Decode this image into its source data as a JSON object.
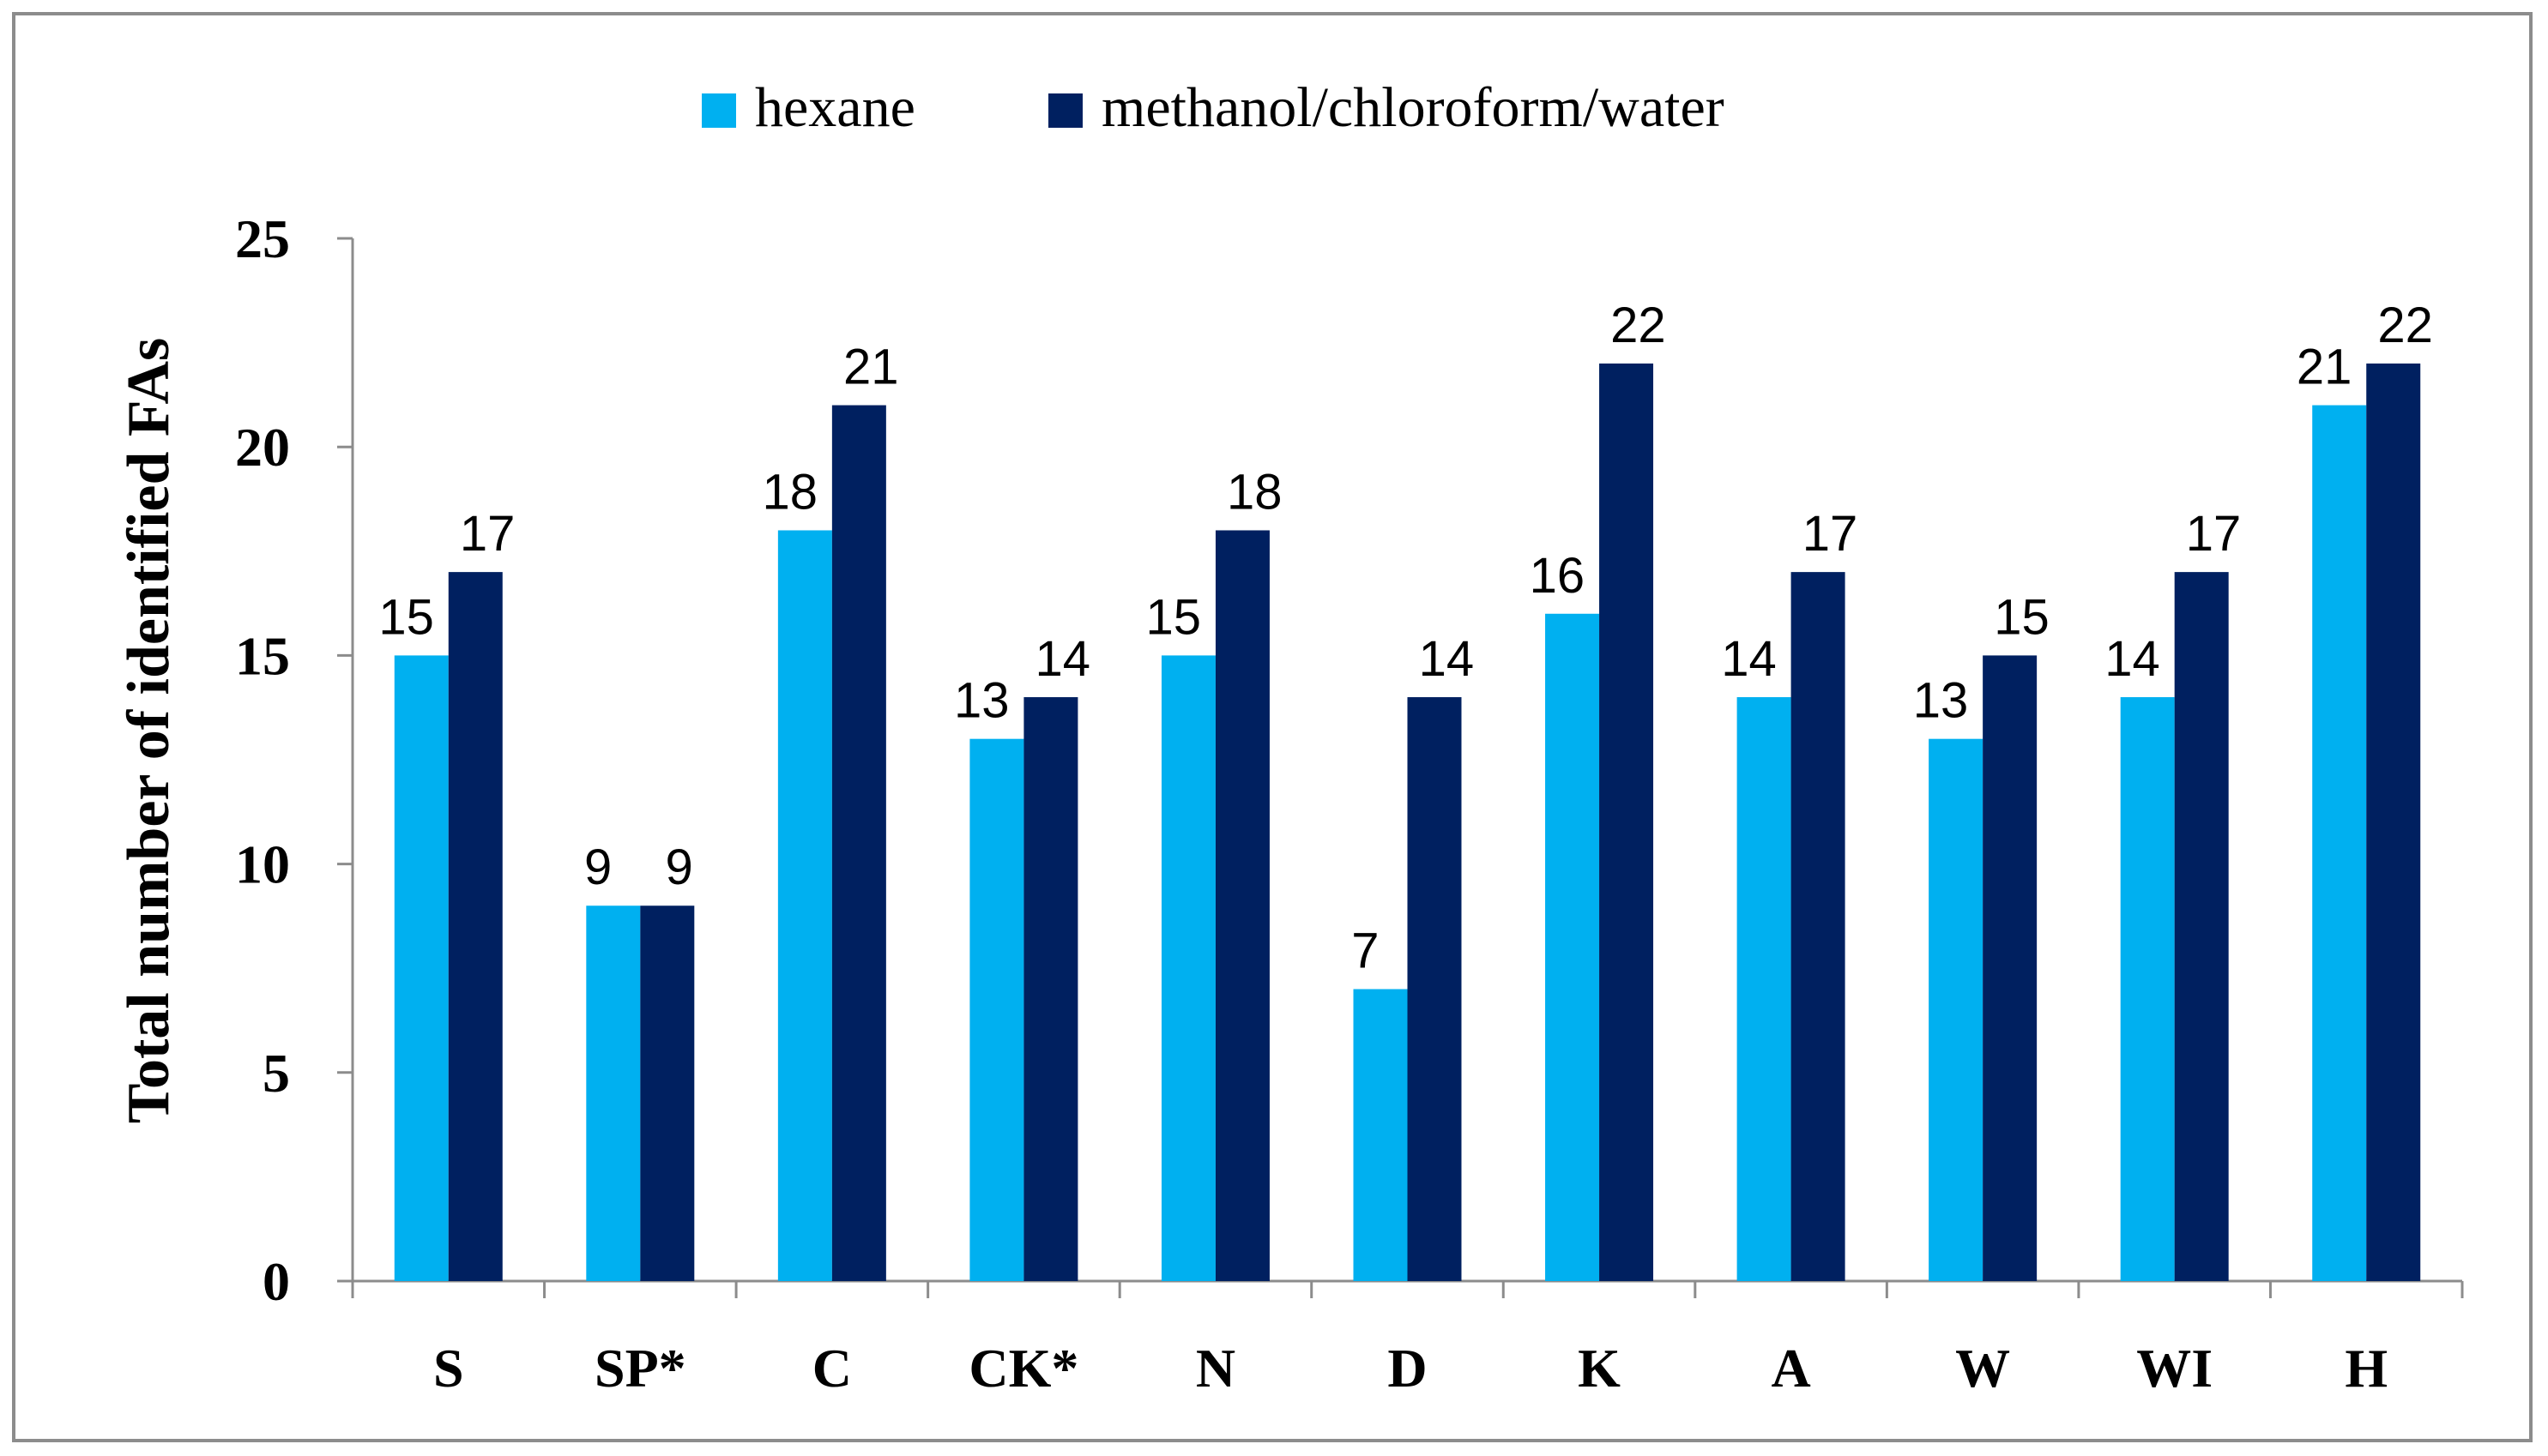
{
  "chart_data": {
    "type": "bar",
    "title": "",
    "xlabel": "",
    "ylabel": "Total number of identified FAs",
    "ylim": [
      0,
      25
    ],
    "yticks": [
      0,
      5,
      10,
      15,
      20,
      25
    ],
    "grid": false,
    "legend_position": "top-center",
    "categories": [
      "S",
      "SP*",
      "C",
      "CK*",
      "N",
      "D",
      "K",
      "A",
      "W",
      "WI",
      "H"
    ],
    "series": [
      {
        "name": "hexane",
        "color": "#00b0f0",
        "values": [
          15,
          9,
          18,
          13,
          15,
          7,
          16,
          14,
          13,
          14,
          21
        ]
      },
      {
        "name": "methanol/chloroform/water",
        "color": "#002060",
        "values": [
          17,
          9,
          21,
          14,
          18,
          14,
          22,
          17,
          15,
          17,
          22
        ]
      }
    ]
  }
}
